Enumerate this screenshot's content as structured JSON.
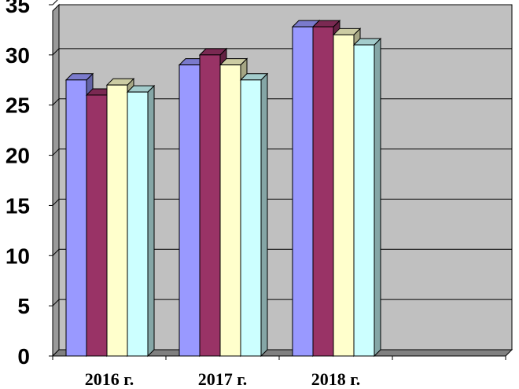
{
  "chart_data": {
    "type": "bar",
    "categories": [
      "2016 г.",
      "2017 г.",
      "2018 г.",
      ""
    ],
    "series": [
      {
        "values": [
          27.5,
          29.0,
          32.8,
          null
        ],
        "color": "#9999FF"
      },
      {
        "values": [
          26.0,
          30.0,
          32.8,
          null
        ],
        "color": "#993366"
      },
      {
        "values": [
          27.0,
          29.0,
          32.0,
          null
        ],
        "color": "#FFFFCC"
      },
      {
        "values": [
          26.3,
          27.5,
          31.0,
          null
        ],
        "color": "#CCFFFF"
      }
    ],
    "ylim": [
      0,
      35
    ],
    "yticks": [
      "0",
      "5",
      "10",
      "15",
      "20",
      "25",
      "30",
      "35"
    ],
    "grid": true,
    "style": "3d-clustered-column",
    "wall_color": "#C0C0C0"
  }
}
